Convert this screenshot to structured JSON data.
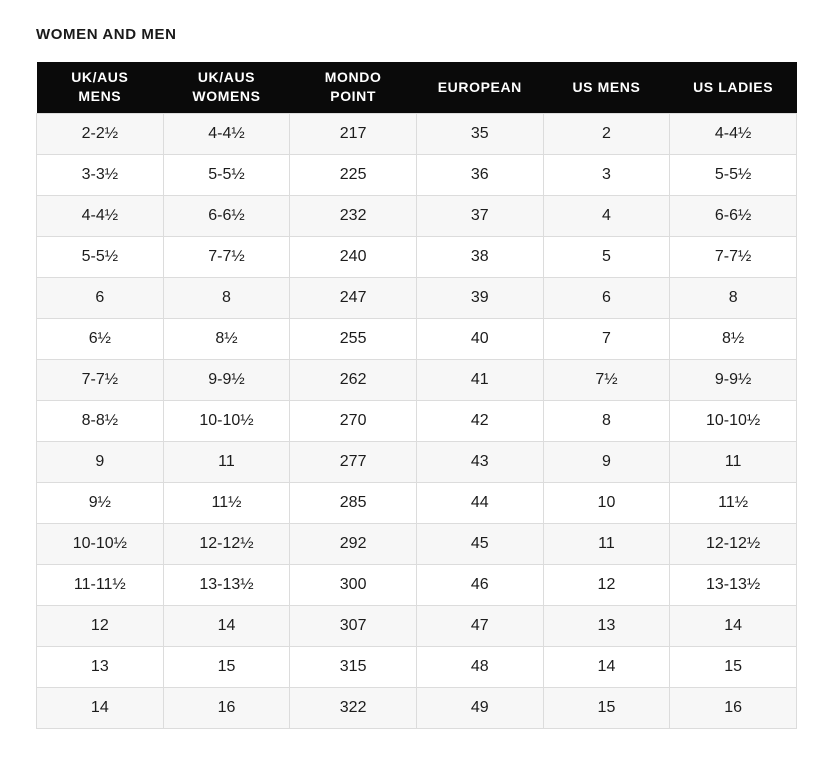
{
  "page": {
    "title": "WOMEN AND MEN"
  },
  "chart_data": {
    "type": "table",
    "title": "WOMEN AND MEN",
    "columns": [
      "UK/AUS MENS",
      "UK/AUS WOMENS",
      "MONDO POINT",
      "EUROPEAN",
      "US MENS",
      "US LADIES"
    ],
    "rows": [
      [
        "2-2½",
        "4-4½",
        "217",
        "35",
        "2",
        "4-4½"
      ],
      [
        "3-3½",
        "5-5½",
        "225",
        "36",
        "3",
        "5-5½"
      ],
      [
        "4-4½",
        "6-6½",
        "232",
        "37",
        "4",
        "6-6½"
      ],
      [
        "5-5½",
        "7-7½",
        "240",
        "38",
        "5",
        "7-7½"
      ],
      [
        "6",
        "8",
        "247",
        "39",
        "6",
        "8"
      ],
      [
        "6½",
        "8½",
        "255",
        "40",
        "7",
        "8½"
      ],
      [
        "7-7½",
        "9-9½",
        "262",
        "41",
        "7½",
        "9-9½"
      ],
      [
        "8-8½",
        "10-10½",
        "270",
        "42",
        "8",
        "10-10½"
      ],
      [
        "9",
        "11",
        "277",
        "43",
        "9",
        "11"
      ],
      [
        "9½",
        "11½",
        "285",
        "44",
        "10",
        "11½"
      ],
      [
        "10-10½",
        "12-12½",
        "292",
        "45",
        "11",
        "12-12½"
      ],
      [
        "11-11½",
        "13-13½",
        "300",
        "46",
        "12",
        "13-13½"
      ],
      [
        "12",
        "14",
        "307",
        "47",
        "13",
        "14"
      ],
      [
        "13",
        "15",
        "315",
        "48",
        "14",
        "15"
      ],
      [
        "14",
        "16",
        "322",
        "49",
        "15",
        "16"
      ]
    ]
  },
  "colors": {
    "header_bg": "#0a0a0a",
    "header_text": "#ffffff",
    "row_alt_bg": "#f7f7f7",
    "row_bg": "#ffffff",
    "border": "#dcdcdc",
    "text": "#1c1c1c"
  }
}
